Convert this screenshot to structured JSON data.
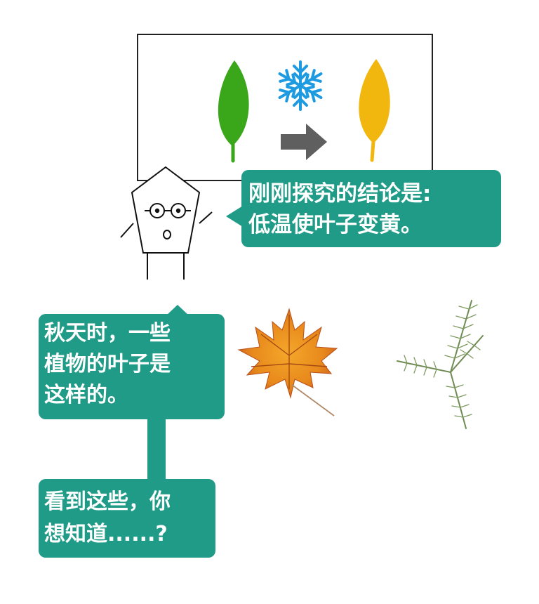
{
  "colors": {
    "bubble_bg": "#1f9b87",
    "bubble_text": "#ffffff",
    "green_leaf": "#3aa61a",
    "yellow_leaf": "#f2b70f",
    "snowflake": "#1e9be0",
    "arrow": "#5f5f5f"
  },
  "board": {
    "icons": [
      "green-leaf-icon",
      "snowflake-icon",
      "arrow-right-icon",
      "yellow-leaf-icon"
    ]
  },
  "conclusion_bubble": {
    "line1": "刚刚探究的结论是:",
    "line2": "低温使叶子变黄。"
  },
  "autumn_bubble": {
    "line1": "秋天时，一些",
    "line2": "植物的叶子是",
    "line3": "这样的。"
  },
  "question_bubble": {
    "line1": "看到这些，你",
    "line2": "想知道......?"
  },
  "images": [
    "maple-leaf-image",
    "pine-branch-image"
  ]
}
